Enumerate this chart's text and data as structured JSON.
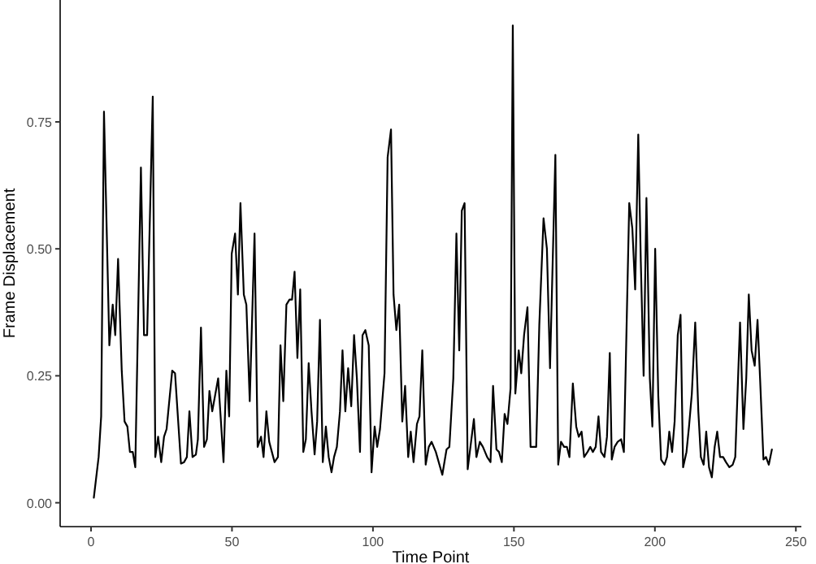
{
  "chart_data": {
    "type": "line",
    "xlabel": "Time Point",
    "ylabel": "Frame Displacement",
    "xlim": [
      -10.95,
      251.95
    ],
    "ylim": [
      -0.047,
      0.99
    ],
    "xticks": [
      0,
      50,
      100,
      150,
      200,
      250
    ],
    "yticks": [
      {
        "value": 0,
        "label": "0.00"
      },
      {
        "value": 0.25,
        "label": "0.25"
      },
      {
        "value": 0.5,
        "label": "0.50"
      },
      {
        "value": 0.75,
        "label": "0.75"
      }
    ],
    "grid": false,
    "marker": "none",
    "line_style": "solid",
    "series": [
      {
        "color": "#000000",
        "x": [
          1,
          2.7,
          3.6,
          4.6,
          6.5,
          7.7,
          8.6,
          9.6,
          10.9,
          11.9,
          12.9,
          13.8,
          14.8,
          15.7,
          17.7,
          18.8,
          19.9,
          21.9,
          22.8,
          23.8,
          24.9,
          25.9,
          26.8,
          28.8,
          29.8,
          31.9,
          33,
          34,
          34.9,
          36,
          37.2,
          37.9,
          39,
          40.1,
          41.1,
          42,
          43,
          45.1,
          47,
          48,
          49,
          49.9,
          51.1,
          52.1,
          53,
          54.2,
          55.1,
          56.3,
          58,
          59.1,
          60.3,
          61.2,
          62.2,
          63.2,
          65.1,
          66.3,
          67.2,
          68.2,
          69.3,
          70.4,
          71.3,
          72.2,
          73.2,
          74.2,
          75.3,
          76.2,
          77.2,
          78.2,
          79.3,
          80.2,
          81.2,
          82.2,
          83.3,
          84.3,
          85.3,
          86.2,
          87.2,
          88.3,
          89.2,
          90.2,
          91.2,
          92.3,
          93.3,
          94.3,
          95.4,
          96.3,
          97.3,
          98.5,
          99.5,
          100.6,
          101.5,
          102.5,
          104.1,
          105.2,
          106.4,
          107.3,
          108.3,
          109.3,
          110.4,
          111.4,
          112.5,
          113.4,
          114.4,
          115.6,
          116.5,
          117.5,
          118.7,
          119.8,
          120.8,
          122.3,
          124.6,
          126.1,
          127.1,
          128.5,
          129.6,
          130.6,
          131.5,
          132.5,
          133.6,
          134.8,
          135.8,
          136.7,
          137.9,
          139,
          140.5,
          141.7,
          142.6,
          143.8,
          144.7,
          145.7,
          146.7,
          147.7,
          148.8,
          149.6,
          150.5,
          151.7,
          152.6,
          153.6,
          154.8,
          155.9,
          156.9,
          157.9,
          159,
          160.5,
          161.7,
          162.8,
          164.7,
          165.7,
          166.7,
          167.8,
          168.8,
          169.7,
          170.9,
          172.1,
          173,
          174,
          174.9,
          176.1,
          177.1,
          178,
          179,
          180,
          180.9,
          182.1,
          183,
          184,
          184.7,
          185.7,
          186.8,
          188,
          189,
          190.9,
          192,
          193,
          194.1,
          195,
          196,
          197,
          198.2,
          199.1,
          200.1,
          201.2,
          202.2,
          203.4,
          204.3,
          205.1,
          206.1,
          207,
          208.1,
          209.1,
          210,
          211.2,
          212.1,
          213.1,
          214.3,
          215.4,
          216.3,
          217.3,
          218.2,
          219.2,
          220.2,
          221.2,
          222.1,
          223.1,
          224.2,
          225.2,
          226.4,
          227.6,
          228.5,
          230.2,
          231.4,
          232.4,
          233.3,
          234.3,
          235.4,
          236.4,
          237.3,
          238.5,
          239.4,
          240.4,
          241.5
        ],
        "values": [
          0.01,
          0.09,
          0.17,
          0.77,
          0.31,
          0.39,
          0.33,
          0.48,
          0.26,
          0.16,
          0.15,
          0.1,
          0.1,
          0.07,
          0.66,
          0.33,
          0.33,
          0.8,
          0.09,
          0.13,
          0.08,
          0.13,
          0.145,
          0.26,
          0.255,
          0.077,
          0.08,
          0.09,
          0.18,
          0.09,
          0.095,
          0.125,
          0.345,
          0.11,
          0.125,
          0.22,
          0.18,
          0.245,
          0.08,
          0.26,
          0.17,
          0.49,
          0.53,
          0.41,
          0.59,
          0.41,
          0.39,
          0.2,
          0.53,
          0.11,
          0.13,
          0.09,
          0.18,
          0.12,
          0.08,
          0.09,
          0.31,
          0.2,
          0.39,
          0.4,
          0.4,
          0.455,
          0.285,
          0.42,
          0.1,
          0.125,
          0.275,
          0.18,
          0.095,
          0.16,
          0.36,
          0.08,
          0.15,
          0.09,
          0.06,
          0.09,
          0.11,
          0.18,
          0.3,
          0.18,
          0.265,
          0.19,
          0.33,
          0.245,
          0.1,
          0.33,
          0.34,
          0.31,
          0.06,
          0.15,
          0.11,
          0.145,
          0.255,
          0.68,
          0.735,
          0.41,
          0.34,
          0.39,
          0.16,
          0.23,
          0.09,
          0.14,
          0.08,
          0.155,
          0.17,
          0.3,
          0.075,
          0.11,
          0.12,
          0.1,
          0.055,
          0.105,
          0.11,
          0.245,
          0.53,
          0.3,
          0.575,
          0.59,
          0.066,
          0.12,
          0.165,
          0.09,
          0.12,
          0.11,
          0.09,
          0.08,
          0.23,
          0.105,
          0.1,
          0.08,
          0.175,
          0.155,
          0.225,
          0.94,
          0.215,
          0.3,
          0.255,
          0.33,
          0.385,
          0.11,
          0.11,
          0.11,
          0.35,
          0.56,
          0.5,
          0.265,
          0.685,
          0.075,
          0.12,
          0.11,
          0.11,
          0.09,
          0.235,
          0.15,
          0.13,
          0.14,
          0.09,
          0.1,
          0.11,
          0.1,
          0.11,
          0.17,
          0.1,
          0.09,
          0.13,
          0.295,
          0.085,
          0.11,
          0.12,
          0.125,
          0.1,
          0.59,
          0.54,
          0.42,
          0.725,
          0.475,
          0.25,
          0.6,
          0.245,
          0.15,
          0.5,
          0.21,
          0.085,
          0.075,
          0.09,
          0.14,
          0.1,
          0.16,
          0.33,
          0.37,
          0.07,
          0.1,
          0.15,
          0.215,
          0.355,
          0.18,
          0.09,
          0.075,
          0.14,
          0.07,
          0.05,
          0.11,
          0.14,
          0.09,
          0.09,
          0.08,
          0.07,
          0.075,
          0.09,
          0.355,
          0.145,
          0.245,
          0.41,
          0.3,
          0.27,
          0.36,
          0.245,
          0.085,
          0.09,
          0.075,
          0.105
        ]
      }
    ]
  }
}
